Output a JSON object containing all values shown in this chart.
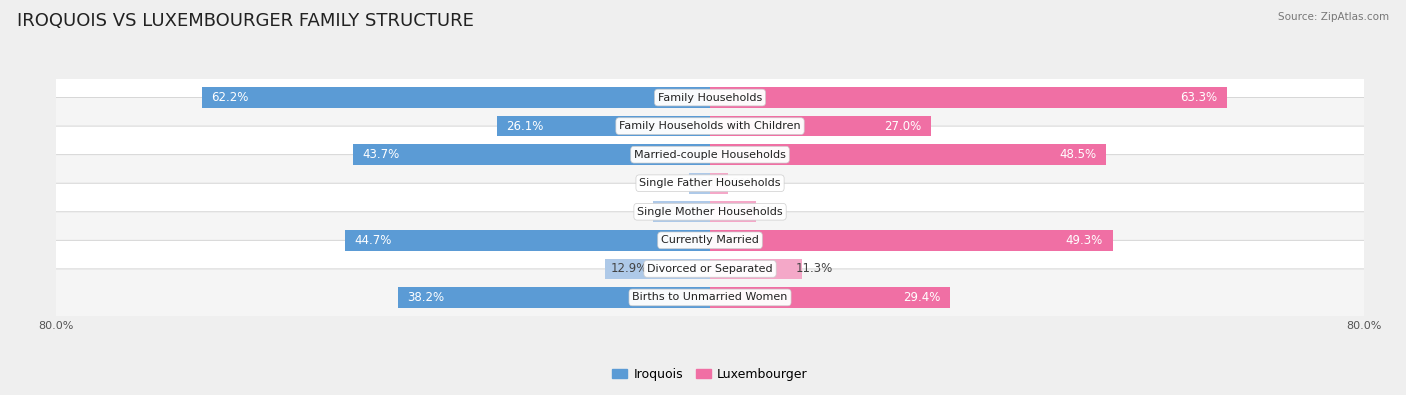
{
  "title": "IROQUOIS VS LUXEMBOURGER FAMILY STRUCTURE",
  "source": "Source: ZipAtlas.com",
  "categories": [
    "Family Households",
    "Family Households with Children",
    "Married-couple Households",
    "Single Father Households",
    "Single Mother Households",
    "Currently Married",
    "Divorced or Separated",
    "Births to Unmarried Women"
  ],
  "iroquois_values": [
    62.2,
    26.1,
    43.7,
    2.6,
    7.0,
    44.7,
    12.9,
    38.2
  ],
  "luxembourger_values": [
    63.3,
    27.0,
    48.5,
    2.2,
    5.6,
    49.3,
    11.3,
    29.4
  ],
  "iroquois_color_dark": "#5b9bd5",
  "iroquois_color_light": "#aec9e8",
  "luxembourger_color_dark": "#f06fa4",
  "luxembourger_color_light": "#f4a8c8",
  "axis_max": 80.0,
  "background_color": "#efefef",
  "row_bg_color": "#ffffff",
  "row_alt_bg_color": "#f5f5f5",
  "label_fontsize": 8.5,
  "title_fontsize": 13,
  "legend_fontsize": 9,
  "axis_label_fontsize": 8,
  "dark_threshold": 15
}
